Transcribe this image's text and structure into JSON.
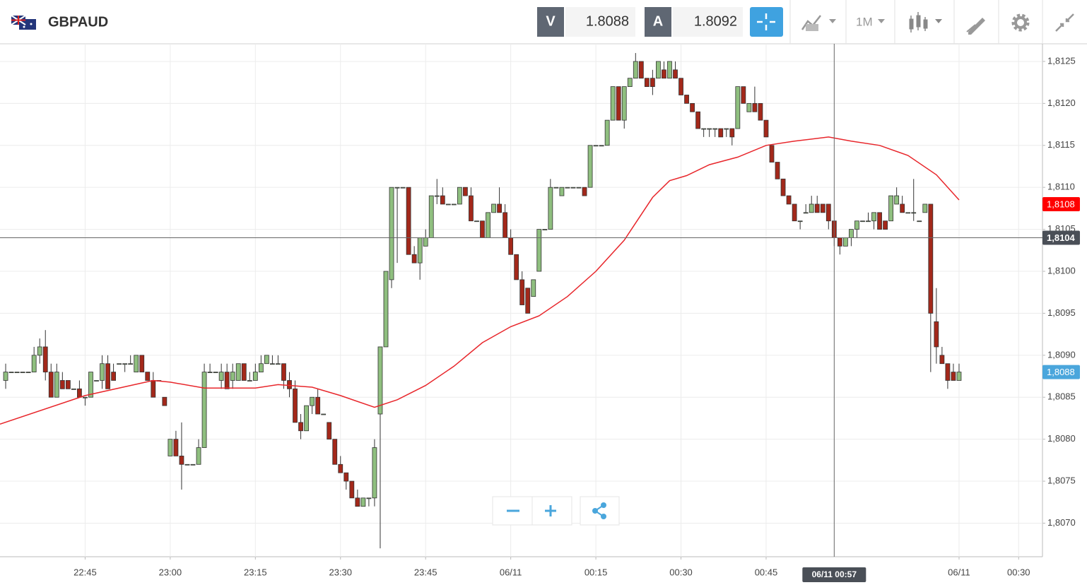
{
  "header": {
    "symbol": "GBPAUD",
    "bid_label": "V",
    "bid": "1.8088",
    "ask_label": "A",
    "ask": "1.8092",
    "timeframe": "1M"
  },
  "chart_data": {
    "type": "candlestick",
    "x": [
      0,
      1,
      2,
      3,
      4,
      5,
      6,
      7,
      8,
      9,
      10,
      11,
      12,
      13,
      14,
      15,
      16,
      17,
      18,
      19,
      20,
      21,
      22,
      23,
      24,
      25,
      26,
      27,
      28,
      29,
      30,
      31,
      32,
      33,
      34,
      35,
      36,
      37,
      38,
      39,
      40,
      41,
      42,
      43,
      44,
      45,
      46,
      47,
      48,
      49,
      50,
      51,
      52,
      53,
      54,
      55,
      56,
      57,
      58,
      59,
      60,
      61,
      62,
      63,
      64,
      65,
      66,
      67,
      68,
      69,
      70,
      71,
      72,
      73,
      74,
      75,
      76,
      77,
      78,
      79,
      80,
      81,
      82,
      83,
      84,
      85,
      86,
      87,
      88,
      89,
      90,
      91,
      92,
      93,
      94,
      95,
      96,
      97,
      98,
      99,
      100,
      101,
      102,
      103,
      104,
      105,
      106,
      107,
      108,
      109,
      110,
      111,
      112,
      113,
      114,
      115,
      116,
      117,
      118,
      119,
      120,
      121,
      122,
      123,
      124,
      125,
      126,
      127,
      128,
      129,
      130,
      131,
      132,
      133,
      134,
      135,
      136,
      137,
      138,
      139,
      140,
      141,
      142,
      143,
      144,
      145,
      146,
      147,
      148,
      149,
      150,
      151,
      152,
      153,
      154,
      155,
      156,
      157,
      158,
      159,
      160,
      161,
      162,
      163,
      164,
      165,
      166,
      167,
      168
    ],
    "ohlc": [
      [
        1.8087,
        1.8089,
        1.8086,
        1.8088
      ],
      [
        1.8088,
        1.8088,
        1.8088,
        1.8088
      ],
      [
        1.8088,
        1.8088,
        1.8088,
        1.8088
      ],
      [
        1.8088,
        1.8088,
        1.8088,
        1.8088
      ],
      [
        1.8088,
        1.8088,
        1.8088,
        1.8088
      ],
      [
        1.8088,
        1.8091,
        1.8088,
        1.809
      ],
      [
        1.809,
        1.8092,
        1.8089,
        1.8091
      ],
      [
        1.8091,
        1.8093,
        1.8087,
        1.8088
      ],
      [
        1.8088,
        1.8089,
        1.8085,
        1.8085
      ],
      [
        1.8085,
        1.8089,
        1.8085,
        1.8088
      ],
      [
        1.8087,
        1.8088,
        1.8086,
        1.8086
      ],
      [
        1.8087,
        1.8087,
        1.8086,
        1.8086
      ],
      [
        1.8086,
        1.8086,
        1.8086,
        1.8086
      ],
      [
        1.8086,
        1.8087,
        1.8085,
        1.8085
      ],
      [
        1.8085,
        1.8085,
        1.8084,
        1.8085
      ],
      [
        1.8085,
        1.8088,
        1.8085,
        1.8088
      ],
      [
        1.8087,
        1.8087,
        1.8087,
        1.8087
      ],
      [
        1.8087,
        1.809,
        1.8086,
        1.8089
      ],
      [
        1.8089,
        1.809,
        1.8086,
        1.8086
      ],
      [
        1.8088,
        1.8089,
        1.8087,
        1.8087
      ],
      [
        1.8089,
        1.8089,
        1.8089,
        1.8089
      ],
      [
        1.8089,
        1.8089,
        1.8088,
        1.8089
      ],
      [
        1.8089,
        1.809,
        1.8089,
        1.8089
      ],
      [
        1.8088,
        1.809,
        1.8088,
        1.809
      ],
      [
        1.809,
        1.809,
        1.8088,
        1.8088
      ],
      [
        1.8088,
        1.8088,
        1.8087,
        1.8087
      ],
      [
        1.8087,
        1.8088,
        1.8085,
        1.8085
      ],
      [
        1.8087,
        1.8087,
        1.8087,
        1.8087
      ],
      [
        1.8085,
        1.8085,
        1.8084,
        1.8084
      ],
      [
        1.8078,
        1.808,
        1.8078,
        1.808
      ],
      [
        1.808,
        1.8081,
        1.8078,
        1.8078
      ],
      [
        1.8078,
        1.8082,
        1.8074,
        1.8077
      ],
      [
        1.8077,
        1.8077,
        1.8077,
        1.8077
      ],
      [
        1.8077,
        1.8077,
        1.8077,
        1.8077
      ],
      [
        1.8077,
        1.808,
        1.8077,
        1.8079
      ],
      [
        1.8079,
        1.8089,
        1.8079,
        1.8088
      ],
      [
        1.8088,
        1.8089,
        1.8088,
        1.8088
      ],
      [
        1.8088,
        1.8088,
        1.8088,
        1.8088
      ],
      [
        1.8087,
        1.8089,
        1.8086,
        1.8088
      ],
      [
        1.8088,
        1.8089,
        1.8086,
        1.8086
      ],
      [
        1.8087,
        1.8089,
        1.8086,
        1.8088
      ],
      [
        1.8087,
        1.8089,
        1.8087,
        1.8089
      ],
      [
        1.8089,
        1.8089,
        1.8087,
        1.8087
      ],
      [
        1.8087,
        1.8088,
        1.8087,
        1.8087
      ],
      [
        1.8087,
        1.8089,
        1.8087,
        1.8088
      ],
      [
        1.8088,
        1.809,
        1.8088,
        1.8089
      ],
      [
        1.8089,
        1.809,
        1.8089,
        1.809
      ],
      [
        1.8089,
        1.809,
        1.8089,
        1.8089
      ],
      [
        1.8089,
        1.809,
        1.8089,
        1.8089
      ],
      [
        1.8089,
        1.8089,
        1.8086,
        1.8087
      ],
      [
        1.8087,
        1.8088,
        1.8085,
        1.8086
      ],
      [
        1.8086,
        1.8087,
        1.8082,
        1.8082
      ],
      [
        1.8082,
        1.8083,
        1.808,
        1.8081
      ],
      [
        1.8081,
        1.8084,
        1.8081,
        1.8084
      ],
      [
        1.8084,
        1.8085,
        1.8083,
        1.8085
      ],
      [
        1.8085,
        1.8086,
        1.8083,
        1.8083
      ],
      [
        1.8083,
        1.8083,
        1.8083,
        1.8083
      ],
      [
        1.8082,
        1.8082,
        1.808,
        1.808
      ],
      [
        1.808,
        1.808,
        1.8077,
        1.8077
      ],
      [
        1.8077,
        1.8078,
        1.8076,
        1.8076
      ],
      [
        1.8076,
        1.8076,
        1.8074,
        1.8075
      ],
      [
        1.8075,
        1.8075,
        1.8073,
        1.8073
      ],
      [
        1.8073,
        1.8074,
        1.8072,
        1.8072
      ],
      [
        1.8072,
        1.8073,
        1.8072,
        1.8073
      ],
      [
        1.8073,
        1.8073,
        1.8072,
        1.8073
      ],
      [
        1.8073,
        1.808,
        1.8072,
        1.8079
      ],
      [
        1.8083,
        1.8091,
        1.8067,
        1.8091
      ],
      [
        1.8091,
        1.81,
        1.8091,
        1.81
      ],
      [
        1.8099,
        1.811,
        1.8098,
        1.811
      ],
      [
        1.811,
        1.811,
        1.8101,
        1.811
      ],
      [
        1.811,
        1.811,
        1.811,
        1.811
      ],
      [
        1.811,
        1.811,
        1.8102,
        1.8102
      ],
      [
        1.8102,
        1.8103,
        1.8101,
        1.8101
      ],
      [
        1.8101,
        1.8104,
        1.8099,
        1.8104
      ],
      [
        1.8103,
        1.8105,
        1.8103,
        1.8104
      ],
      [
        1.8104,
        1.8109,
        1.8104,
        1.8109
      ],
      [
        1.8109,
        1.8111,
        1.8108,
        1.8109
      ],
      [
        1.8109,
        1.811,
        1.8108,
        1.8108
      ],
      [
        1.8108,
        1.8108,
        1.8108,
        1.8108
      ],
      [
        1.8108,
        1.8108,
        1.8108,
        1.8108
      ],
      [
        1.8108,
        1.811,
        1.8108,
        1.811
      ],
      [
        1.811,
        1.811,
        1.8109,
        1.8109
      ],
      [
        1.8109,
        1.811,
        1.8106,
        1.8106
      ],
      [
        1.8106,
        1.8106,
        1.8106,
        1.8106
      ],
      [
        1.8106,
        1.8106,
        1.8104,
        1.8104
      ],
      [
        1.8104,
        1.8107,
        1.8104,
        1.8107
      ],
      [
        1.8107,
        1.8108,
        1.8107,
        1.8108
      ],
      [
        1.8108,
        1.811,
        1.8107,
        1.8107
      ],
      [
        1.8107,
        1.8108,
        1.8104,
        1.8104
      ],
      [
        1.8104,
        1.8105,
        1.8102,
        1.8102
      ],
      [
        1.8102,
        1.8102,
        1.8099,
        1.8099
      ],
      [
        1.8099,
        1.81,
        1.8096,
        1.8096
      ],
      [
        1.8098,
        1.8098,
        1.8095,
        1.8095
      ],
      [
        1.8097,
        1.8099,
        1.8097,
        1.8099
      ],
      [
        1.81,
        1.8105,
        1.81,
        1.8105
      ],
      [
        1.8105,
        1.8105,
        1.8105,
        1.8105
      ],
      [
        1.8105,
        1.8111,
        1.8105,
        1.811
      ],
      [
        1.811,
        1.811,
        1.811,
        1.811
      ],
      [
        1.8109,
        1.811,
        1.8109,
        1.811
      ],
      [
        1.811,
        1.811,
        1.811,
        1.811
      ],
      [
        1.811,
        1.811,
        1.811,
        1.811
      ],
      [
        1.811,
        1.811,
        1.811,
        1.811
      ],
      [
        1.811,
        1.811,
        1.8109,
        1.8109
      ],
      [
        1.811,
        1.8115,
        1.811,
        1.8115
      ],
      [
        1.8115,
        1.8115,
        1.8115,
        1.8115
      ],
      [
        1.8115,
        1.8115,
        1.8115,
        1.8115
      ],
      [
        1.8115,
        1.8118,
        1.8115,
        1.8118
      ],
      [
        1.8118,
        1.8122,
        1.8118,
        1.8122
      ],
      [
        1.8122,
        1.8122,
        1.8118,
        1.8118
      ],
      [
        1.8118,
        1.8122,
        1.8117,
        1.8122
      ],
      [
        1.8122,
        1.8123,
        1.8122,
        1.8123
      ],
      [
        1.8123,
        1.8126,
        1.8123,
        1.8125
      ],
      [
        1.8125,
        1.8125,
        1.8123,
        1.8123
      ],
      [
        1.8123,
        1.8123,
        1.8122,
        1.8122
      ],
      [
        1.8123,
        1.8124,
        1.8121,
        1.8122
      ],
      [
        1.8123,
        1.8125,
        1.8123,
        1.8125
      ],
      [
        1.8124,
        1.8125,
        1.8123,
        1.8123
      ],
      [
        1.8123,
        1.8125,
        1.8123,
        1.8125
      ],
      [
        1.8124,
        1.8125,
        1.8123,
        1.8123
      ],
      [
        1.8123,
        1.8123,
        1.8121,
        1.8121
      ],
      [
        1.8121,
        1.8121,
        1.812,
        1.812
      ],
      [
        1.812,
        1.812,
        1.8119,
        1.8119
      ],
      [
        1.8119,
        1.8119,
        1.8117,
        1.8117
      ],
      [
        1.8117,
        1.8117,
        1.8116,
        1.8117
      ],
      [
        1.8117,
        1.8117,
        1.8116,
        1.8117
      ],
      [
        1.8117,
        1.8117,
        1.8116,
        1.8117
      ],
      [
        1.8117,
        1.8117,
        1.8116,
        1.8116
      ],
      [
        1.8117,
        1.8117,
        1.8116,
        1.8117
      ],
      [
        1.8117,
        1.8117,
        1.8115,
        1.8116
      ],
      [
        1.8117,
        1.8122,
        1.8117,
        1.8122
      ],
      [
        1.8122,
        1.8122,
        1.812,
        1.812
      ],
      [
        1.8119,
        1.812,
        1.8119,
        1.812
      ],
      [
        1.812,
        1.8122,
        1.8119,
        1.8119
      ],
      [
        1.812,
        1.812,
        1.8118,
        1.8118
      ],
      [
        1.8118,
        1.8118,
        1.8116,
        1.8116
      ],
      [
        1.8115,
        1.8115,
        1.8113,
        1.8113
      ],
      [
        1.8113,
        1.8113,
        1.8111,
        1.8111
      ],
      [
        1.8111,
        1.8111,
        1.8109,
        1.8109
      ],
      [
        1.8109,
        1.8109,
        1.8108,
        1.8108
      ],
      [
        1.8108,
        1.8108,
        1.8106,
        1.8106
      ],
      [
        1.8106,
        1.8106,
        1.8105,
        1.8106
      ],
      [
        1.8107,
        1.8108,
        1.8107,
        1.8107
      ],
      [
        1.8107,
        1.8109,
        1.8107,
        1.8108
      ],
      [
        1.8108,
        1.8109,
        1.8107,
        1.8107
      ],
      [
        1.8108,
        1.8108,
        1.8107,
        1.8107
      ],
      [
        1.8108,
        1.8108,
        1.8105,
        1.8106
      ],
      [
        1.8106,
        1.8106,
        1.8103,
        1.8104
      ],
      [
        1.8104,
        1.8104,
        1.8102,
        1.8103
      ],
      [
        1.8103,
        1.8104,
        1.8103,
        1.8104
      ],
      [
        1.8104,
        1.8105,
        1.8103,
        1.8105
      ],
      [
        1.8105,
        1.8106,
        1.8104,
        1.8106
      ],
      [
        1.8106,
        1.8106,
        1.8106,
        1.8106
      ],
      [
        1.8106,
        1.8107,
        1.8106,
        1.8106
      ],
      [
        1.8106,
        1.8107,
        1.8105,
        1.8107
      ],
      [
        1.8107,
        1.8107,
        1.8105,
        1.8105
      ],
      [
        1.8106,
        1.8106,
        1.8105,
        1.8105
      ],
      [
        1.8106,
        1.8109,
        1.8106,
        1.8109
      ],
      [
        1.8108,
        1.811,
        1.8108,
        1.8109
      ],
      [
        1.8108,
        1.8109,
        1.8107,
        1.8107
      ],
      [
        1.8107,
        1.8107,
        1.8107,
        1.8107
      ],
      [
        1.8107,
        1.8111,
        1.8106,
        1.8107
      ],
      [
        1.8106,
        1.8106,
        1.8106,
        1.8106
      ],
      [
        1.8107,
        1.8108,
        1.8107,
        1.8108
      ],
      [
        1.8108,
        1.8108,
        1.8088,
        1.8095
      ],
      [
        1.8094,
        1.8098,
        1.8089,
        1.8091
      ],
      [
        1.809,
        1.8091,
        1.8089,
        1.8089
      ],
      [
        1.8089,
        1.8089,
        1.8086,
        1.8087
      ],
      [
        1.8088,
        1.8089,
        1.8087,
        1.8087
      ],
      [
        1.8087,
        1.8089,
        1.8087,
        1.8088
      ]
    ],
    "up_color": "#8fbf7f",
    "down_color": "#a3281a",
    "wick_color": "#333333",
    "ma": {
      "color": "#e8262b",
      "x": [
        -1,
        14,
        26,
        29,
        35,
        44,
        48,
        54,
        59,
        65,
        69,
        74,
        79,
        84,
        89,
        94,
        99,
        104,
        109,
        114,
        117,
        120,
        124,
        129,
        134,
        139,
        145,
        149,
        154,
        159,
        164,
        168
      ],
      "values": [
        1.80818,
        1.80852,
        1.8087,
        1.80868,
        1.80861,
        1.80861,
        1.80865,
        1.80862,
        1.80852,
        1.80838,
        1.80847,
        1.80864,
        1.80887,
        1.80915,
        1.80934,
        1.80947,
        1.8097,
        1.81,
        1.81037,
        1.81088,
        1.81108,
        1.81114,
        1.81127,
        1.81136,
        1.8115,
        1.81155,
        1.8116,
        1.81155,
        1.8115,
        1.81138,
        1.81115,
        1.81085
      ]
    },
    "xlim": [
      -1,
      182.7
    ],
    "xticks": [
      {
        "value": 14,
        "label": "22:45"
      },
      {
        "value": 29,
        "label": "23:00"
      },
      {
        "value": 44,
        "label": "23:15"
      },
      {
        "value": 59,
        "label": "23:30"
      },
      {
        "value": 74,
        "label": "23:45"
      },
      {
        "value": 89,
        "label": "06/11"
      },
      {
        "value": 104,
        "label": "00:15"
      },
      {
        "value": 119,
        "label": "00:30"
      },
      {
        "value": 134,
        "label": "00:45"
      },
      {
        "value": 168,
        "label": "06/11"
      },
      {
        "value": 178.5,
        "label": "00:30"
      }
    ],
    "ylim": [
      1.8066,
      1.81271
    ],
    "yticks": [
      {
        "value": 1.807,
        "label": "1,8070"
      },
      {
        "value": 1.8075,
        "label": "1,8075"
      },
      {
        "value": 1.808,
        "label": "1,8080"
      },
      {
        "value": 1.8085,
        "label": "1,8085"
      },
      {
        "value": 1.809,
        "label": "1,8090"
      },
      {
        "value": 1.8095,
        "label": "1,8095"
      },
      {
        "value": 1.81,
        "label": "1,8100"
      },
      {
        "value": 1.8105,
        "label": "1,8105"
      },
      {
        "value": 1.811,
        "label": "1,8110"
      },
      {
        "value": 1.8115,
        "label": "1,8115"
      },
      {
        "value": 1.812,
        "label": "1,8120"
      },
      {
        "value": 1.8125,
        "label": "1,8125"
      }
    ],
    "grid": true,
    "price_markers": [
      {
        "value": 1.8108,
        "label": "1,8108",
        "color": "#ff0000"
      },
      {
        "value": 1.8088,
        "label": "1,8088",
        "color": "#4aa6dc"
      }
    ],
    "crosshair": {
      "x": 146,
      "y": 1.8104,
      "x_label": "06/11 00:57",
      "y_label": "1,8104"
    }
  }
}
